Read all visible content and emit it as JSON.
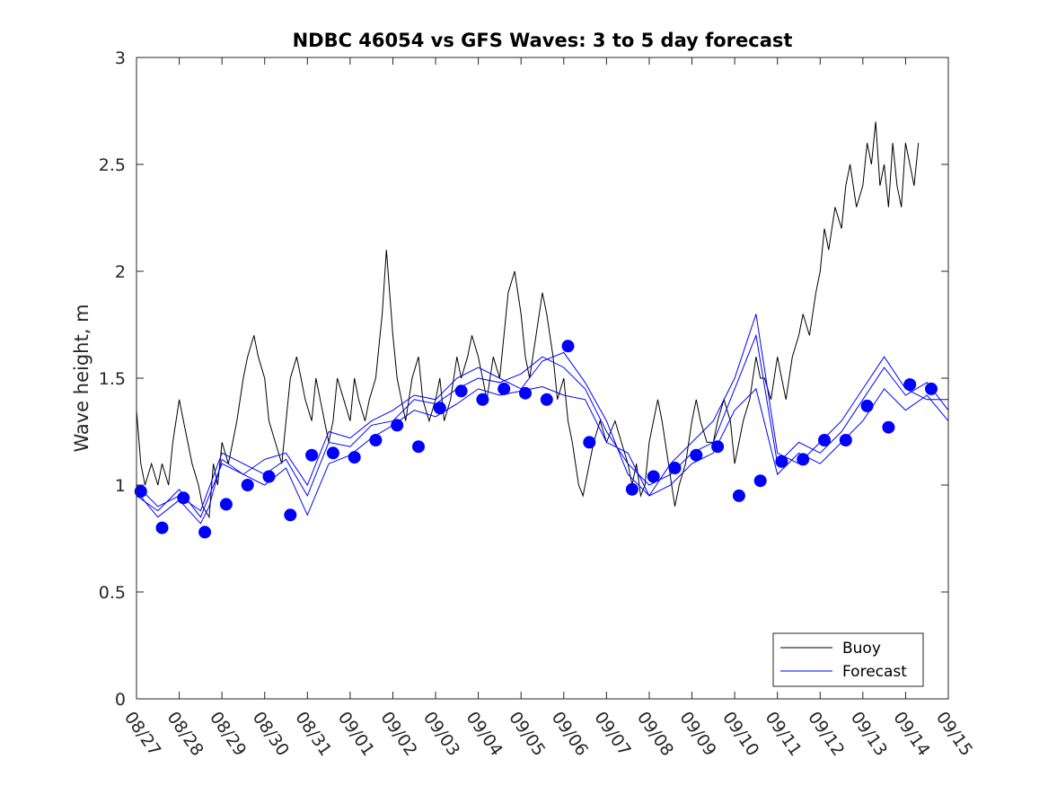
{
  "chart_data": {
    "type": "line",
    "title": "NDBC 46054 vs GFS Waves: 3 to 5 day forecast",
    "xlabel": "",
    "ylabel": "Wave height, m",
    "ylim": [
      0,
      3
    ],
    "yticks": [
      0,
      0.5,
      1,
      1.5,
      2,
      2.5,
      3
    ],
    "ytick_labels": [
      "0",
      "0.5",
      "1",
      "1.5",
      "2",
      "2.5",
      "3"
    ],
    "xlim_days": [
      0,
      19
    ],
    "xtick_labels": [
      "08/27",
      "08/28",
      "08/29",
      "08/30",
      "08/31",
      "09/01",
      "09/02",
      "09/03",
      "09/04",
      "09/05",
      "09/06",
      "09/07",
      "09/08",
      "09/09",
      "09/10",
      "09/11",
      "09/12",
      "09/13",
      "09/14",
      "09/15"
    ],
    "legend": {
      "position": "bottom-right",
      "entries": [
        {
          "label": "Buoy",
          "color": "#000000"
        },
        {
          "label": "Forecast",
          "color": "#0000ff"
        }
      ]
    },
    "series": [
      {
        "name": "Buoy",
        "color": "#000000",
        "style": "line",
        "x": [
          0,
          0.1,
          0.2,
          0.35,
          0.5,
          0.6,
          0.75,
          0.85,
          1.0,
          1.1,
          1.2,
          1.3,
          1.45,
          1.55,
          1.7,
          1.8,
          1.9,
          2.0,
          2.15,
          2.25,
          2.35,
          2.5,
          2.6,
          2.75,
          2.85,
          3.0,
          3.1,
          3.25,
          3.4,
          3.5,
          3.6,
          3.75,
          3.85,
          3.95,
          4.1,
          4.2,
          4.3,
          4.4,
          4.5,
          4.6,
          4.7,
          4.85,
          5.0,
          5.1,
          5.2,
          5.35,
          5.45,
          5.6,
          5.75,
          5.85,
          6.0,
          6.1,
          6.2,
          6.3,
          6.45,
          6.6,
          6.7,
          6.85,
          7.0,
          7.1,
          7.2,
          7.35,
          7.5,
          7.6,
          7.75,
          7.85,
          8.0,
          8.1,
          8.2,
          8.35,
          8.5,
          8.6,
          8.7,
          8.85,
          9.0,
          9.1,
          9.2,
          9.35,
          9.5,
          9.6,
          9.75,
          9.85,
          10.0,
          10.1,
          10.2,
          10.35,
          10.45,
          10.6,
          10.7,
          10.85,
          11.0,
          11.1,
          11.2,
          11.35,
          11.5,
          11.6,
          11.7,
          11.8,
          11.9,
          12.0,
          12.1,
          12.2,
          12.3,
          12.45,
          12.6,
          12.7,
          12.85,
          13.0,
          13.1,
          13.2,
          13.35,
          13.5,
          13.6,
          13.75,
          13.9,
          14.0,
          14.1,
          14.2,
          14.35,
          14.5,
          14.6,
          14.7,
          14.85,
          15.0,
          15.1,
          15.2,
          15.35,
          15.5,
          15.6,
          15.75,
          15.9,
          16.0,
          16.1,
          16.2,
          16.35,
          16.5,
          16.6,
          16.7,
          16.85,
          17.0,
          17.1,
          17.2,
          17.3,
          17.4,
          17.5,
          17.6,
          17.7,
          17.8,
          17.9,
          18.0,
          18.1,
          18.2,
          18.3
        ],
        "y": [
          1.35,
          1.1,
          1.0,
          1.1,
          1.0,
          1.1,
          1.0,
          1.2,
          1.4,
          1.3,
          1.2,
          1.1,
          1.0,
          0.9,
          0.85,
          1.1,
          1.0,
          1.2,
          1.1,
          1.2,
          1.3,
          1.5,
          1.6,
          1.7,
          1.6,
          1.5,
          1.3,
          1.2,
          1.1,
          1.3,
          1.5,
          1.6,
          1.5,
          1.4,
          1.3,
          1.5,
          1.4,
          1.3,
          1.2,
          1.3,
          1.5,
          1.4,
          1.3,
          1.5,
          1.4,
          1.3,
          1.4,
          1.5,
          1.8,
          2.1,
          1.7,
          1.5,
          1.4,
          1.3,
          1.5,
          1.6,
          1.4,
          1.3,
          1.4,
          1.5,
          1.3,
          1.4,
          1.6,
          1.5,
          1.6,
          1.7,
          1.6,
          1.5,
          1.4,
          1.6,
          1.5,
          1.7,
          1.9,
          2.0,
          1.8,
          1.6,
          1.5,
          1.7,
          1.9,
          1.8,
          1.6,
          1.4,
          1.5,
          1.3,
          1.2,
          1.0,
          0.95,
          1.1,
          1.2,
          1.3,
          1.2,
          1.25,
          1.3,
          1.2,
          1.1,
          1.0,
          1.1,
          0.95,
          1.0,
          1.2,
          1.3,
          1.4,
          1.3,
          1.1,
          0.9,
          1.0,
          1.1,
          1.3,
          1.4,
          1.3,
          1.2,
          1.2,
          1.3,
          1.4,
          1.3,
          1.1,
          1.2,
          1.3,
          1.4,
          1.6,
          1.5,
          1.5,
          1.4,
          1.6,
          1.5,
          1.4,
          1.6,
          1.7,
          1.8,
          1.7,
          1.9,
          2.0,
          2.2,
          2.1,
          2.3,
          2.2,
          2.4,
          2.5,
          2.3,
          2.4,
          2.6,
          2.5,
          2.7,
          2.4,
          2.5,
          2.3,
          2.6,
          2.4,
          2.3,
          2.6,
          2.5,
          2.4,
          2.6
        ]
      },
      {
        "name": "Forecast",
        "color": "#0000ff",
        "style": "line",
        "x": [
          0.0,
          0.5,
          1.0,
          1.5,
          1.7,
          2.0,
          2.5,
          3.0,
          3.5,
          4.0,
          4.5,
          5.0,
          5.5,
          6.0,
          6.5,
          7.0,
          7.5,
          8.0,
          8.5,
          9.0,
          9.5,
          10.0,
          10.5,
          11.0,
          11.5,
          12.0,
          12.5,
          13.0,
          13.5,
          14.0,
          14.5,
          15.0,
          15.5,
          16.0,
          16.5,
          17.0,
          17.5,
          18.0,
          18.5,
          19.0
        ],
        "y": [
          0.97,
          0.85,
          0.93,
          0.82,
          0.9,
          1.12,
          1.05,
          1.0,
          1.08,
          0.86,
          1.1,
          1.14,
          1.22,
          1.28,
          1.35,
          1.32,
          1.38,
          1.45,
          1.42,
          1.44,
          1.46,
          1.42,
          1.4,
          1.2,
          1.15,
          0.95,
          1.0,
          1.1,
          1.15,
          1.35,
          1.45,
          1.05,
          1.15,
          1.1,
          1.2,
          1.3,
          1.45,
          1.35,
          1.42,
          1.3
        ]
      },
      {
        "name": "Forecast",
        "color": "#0000ff",
        "style": "line",
        "x": [
          0.0,
          0.5,
          1.0,
          1.5,
          2.0,
          2.5,
          3.0,
          3.5,
          4.0,
          4.5,
          5.0,
          5.5,
          6.0,
          6.5,
          7.0,
          7.5,
          8.0,
          8.5,
          9.0,
          9.5,
          10.0,
          10.5,
          11.0,
          11.5,
          12.0,
          12.5,
          13.0,
          13.5,
          14.0,
          14.5,
          15.0,
          15.5,
          16.0,
          16.5,
          17.0,
          17.5,
          18.0,
          18.5,
          19.0
        ],
        "y": [
          1.0,
          0.9,
          0.95,
          0.88,
          1.15,
          1.1,
          1.05,
          1.12,
          0.95,
          1.2,
          1.18,
          1.28,
          1.3,
          1.4,
          1.38,
          1.45,
          1.5,
          1.48,
          1.52,
          1.6,
          1.55,
          1.45,
          1.25,
          1.1,
          1.0,
          1.05,
          1.15,
          1.2,
          1.45,
          1.7,
          1.1,
          1.2,
          1.15,
          1.25,
          1.4,
          1.55,
          1.42,
          1.48,
          1.35
        ]
      },
      {
        "name": "Forecast",
        "color": "#0000ff",
        "style": "line",
        "x": [
          0.0,
          0.5,
          1.0,
          1.5,
          2.0,
          2.5,
          3.0,
          3.5,
          4.0,
          4.5,
          5.0,
          5.5,
          6.0,
          6.5,
          7.0,
          7.5,
          8.0,
          8.5,
          9.0,
          9.5,
          10.0,
          10.5,
          11.0,
          11.5,
          12.0,
          12.5,
          13.0,
          13.5,
          14.0,
          14.5,
          15.0,
          15.5,
          16.0,
          16.5,
          17.0,
          17.5,
          18.0,
          18.5,
          19.0
        ],
        "y": [
          0.95,
          0.88,
          0.98,
          0.85,
          1.1,
          1.05,
          1.12,
          1.15,
          1.0,
          1.25,
          1.22,
          1.3,
          1.35,
          1.42,
          1.4,
          1.5,
          1.55,
          1.5,
          1.45,
          1.58,
          1.62,
          1.48,
          1.3,
          1.05,
          0.95,
          1.1,
          1.2,
          1.3,
          1.5,
          1.8,
          1.15,
          1.1,
          1.2,
          1.3,
          1.45,
          1.6,
          1.45,
          1.4,
          1.4
        ]
      }
    ],
    "markers": {
      "name": "Forecast",
      "color": "#0000ff",
      "style": "filled-circle",
      "x": [
        0.1,
        0.6,
        1.1,
        1.6,
        2.1,
        2.6,
        3.1,
        3.6,
        4.1,
        4.6,
        5.1,
        5.6,
        6.1,
        6.6,
        7.1,
        7.6,
        8.1,
        8.6,
        9.1,
        9.6,
        10.1,
        10.6,
        11.6,
        12.1,
        12.6,
        13.1,
        13.6,
        14.1,
        14.6,
        15.1,
        15.6,
        16.1,
        16.6,
        17.1,
        17.6,
        18.1,
        18.6
      ],
      "y": [
        0.97,
        0.8,
        0.94,
        0.78,
        0.91,
        1.0,
        1.04,
        0.86,
        1.14,
        1.15,
        1.13,
        1.21,
        1.28,
        1.18,
        1.36,
        1.44,
        1.4,
        1.45,
        1.43,
        1.4,
        1.65,
        1.2,
        0.98,
        1.04,
        1.08,
        1.14,
        1.18,
        0.95,
        1.02,
        1.11,
        1.12,
        1.21,
        1.21,
        1.37,
        1.27,
        1.47,
        1.45
      ]
    }
  }
}
